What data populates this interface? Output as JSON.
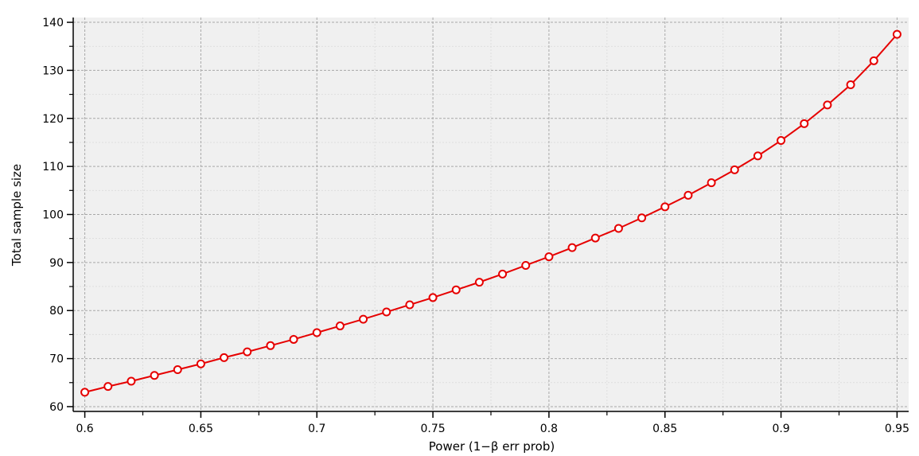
{
  "chart_data": {
    "type": "line",
    "xlabel": "Power (1−β err prob)",
    "ylabel": "Total sample size",
    "xlim": [
      0.595,
      0.955
    ],
    "ylim": [
      59,
      141
    ],
    "x_ticks": [
      0.6,
      0.65,
      0.7,
      0.75,
      0.8,
      0.85,
      0.9,
      0.95
    ],
    "x_tick_labels": [
      "0.6",
      "0.65",
      "0.7",
      "0.75",
      "0.8",
      "0.85",
      "0.9",
      "0.95"
    ],
    "y_ticks": [
      60,
      70,
      80,
      90,
      100,
      110,
      120,
      130,
      140
    ],
    "y_tick_labels": [
      "60",
      "70",
      "80",
      "90",
      "100",
      "110",
      "120",
      "130",
      "140"
    ],
    "grid": true,
    "colors": {
      "line": "#e60000",
      "marker_fill": "#ffffff",
      "plot_bg": "#f0f0f0",
      "grid": "#a8a8a8"
    },
    "series": [
      {
        "x": [
          0.6,
          0.61,
          0.62,
          0.63,
          0.64,
          0.65,
          0.66,
          0.67,
          0.68,
          0.69,
          0.7,
          0.71,
          0.72,
          0.73,
          0.74,
          0.75,
          0.76,
          0.77,
          0.78,
          0.79,
          0.8,
          0.81,
          0.82,
          0.83,
          0.84,
          0.85,
          0.86,
          0.87,
          0.88,
          0.89,
          0.9,
          0.91,
          0.92,
          0.93,
          0.94,
          0.95
        ],
        "values": [
          63,
          64.2,
          65.3,
          66.5,
          67.7,
          68.9,
          70.2,
          71.4,
          72.7,
          74.0,
          75.4,
          76.8,
          78.2,
          79.7,
          81.2,
          82.7,
          84.3,
          85.9,
          87.6,
          89.4,
          91.2,
          93.1,
          95.1,
          97.1,
          99.3,
          101.6,
          104.0,
          106.6,
          109.3,
          112.2,
          115.4,
          118.9,
          122.8,
          127.0,
          132.0,
          137.5
        ]
      }
    ]
  }
}
